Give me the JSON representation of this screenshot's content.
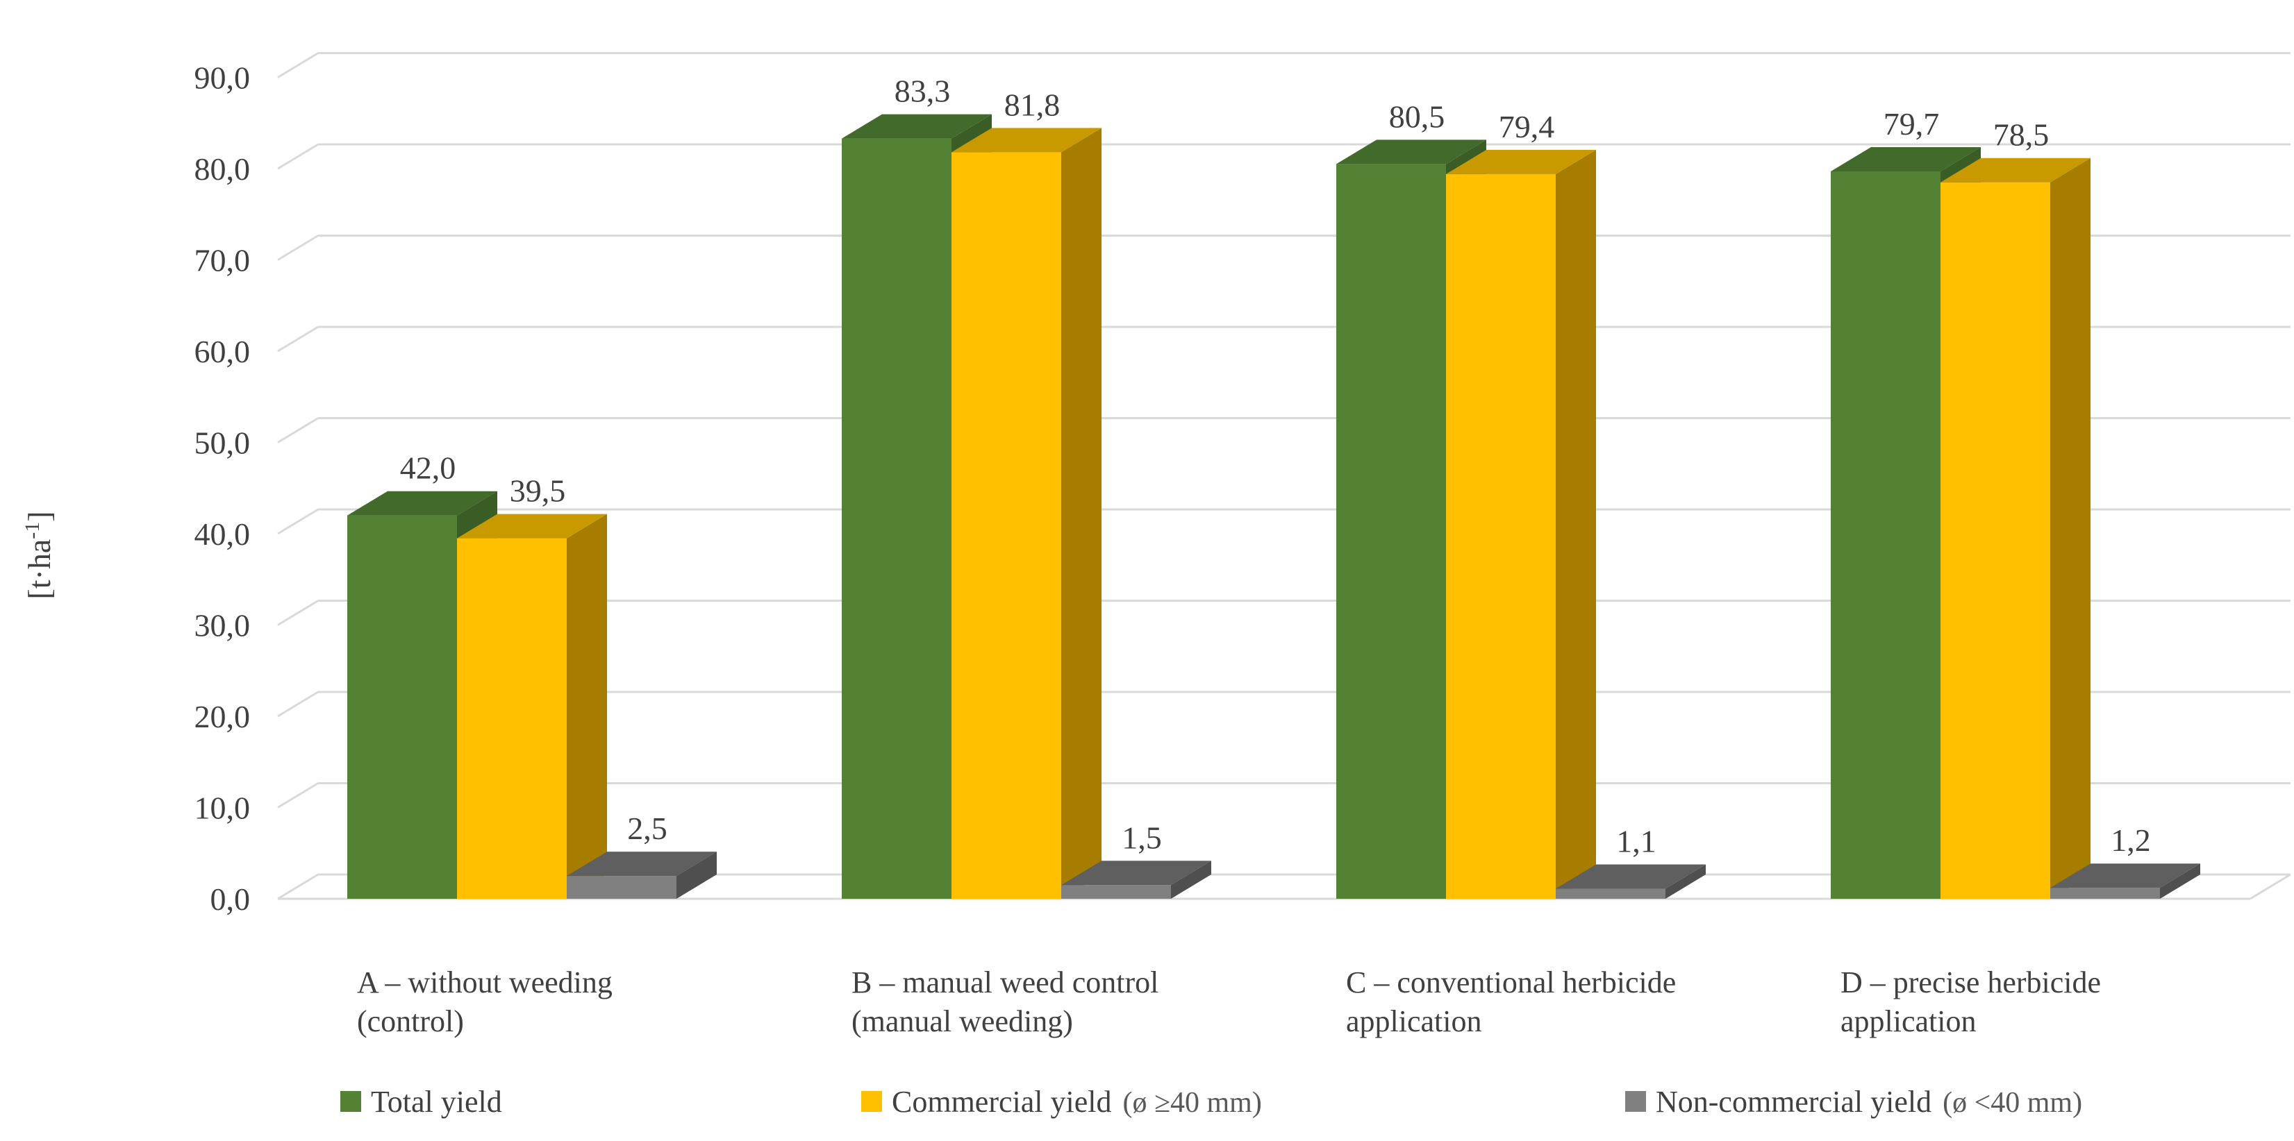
{
  "chart_data": {
    "type": "bar",
    "style": "3d-clustered-column",
    "title": "",
    "xlabel": "",
    "ylabel": "[t·ha⁻¹]",
    "ylabel_main": "[t·ha",
    "ylabel_sup": "-1",
    "ylabel_close": "]",
    "ylim": [
      0,
      90
    ],
    "ytick_step": 10,
    "yticks": [
      "0,0",
      "10,0",
      "20,0",
      "30,0",
      "40,0",
      "50,0",
      "60,0",
      "70,0",
      "80,0",
      "90,0"
    ],
    "grid": true,
    "legend_position": "bottom",
    "categories": [
      [
        "A – without weeding",
        "(control)"
      ],
      [
        "B – manual weed control",
        "(manual weeding)"
      ],
      [
        "C – conventional herbicide",
        "application"
      ],
      [
        "D – precise herbicide",
        "application"
      ]
    ],
    "series": [
      {
        "name": "Total yield",
        "note": "",
        "color": "#548235",
        "side_color": "#3a5c25",
        "top_color": "#426a2a",
        "values": [
          42.0,
          83.3,
          80.5,
          79.7
        ],
        "labels": [
          "42,0",
          "83,3",
          "80,5",
          "79,7"
        ]
      },
      {
        "name": "Commercial yield",
        "note": "(ø ≥40 mm)",
        "color": "#ffc000",
        "side_color": "#a77d00",
        "top_color": "#c99900",
        "values": [
          39.5,
          81.8,
          79.4,
          78.5
        ],
        "labels": [
          "39,5",
          "81,8",
          "79,4",
          "78,5"
        ]
      },
      {
        "name": "Non-commercial yield",
        "note": "(ø <40 mm)",
        "color": "#808080",
        "side_color": "#4f4f4f",
        "top_color": "#5f5f5f",
        "values": [
          2.5,
          1.5,
          1.1,
          1.2
        ],
        "labels": [
          "2,5",
          "1,5",
          "1,1",
          "1,2"
        ]
      }
    ]
  }
}
